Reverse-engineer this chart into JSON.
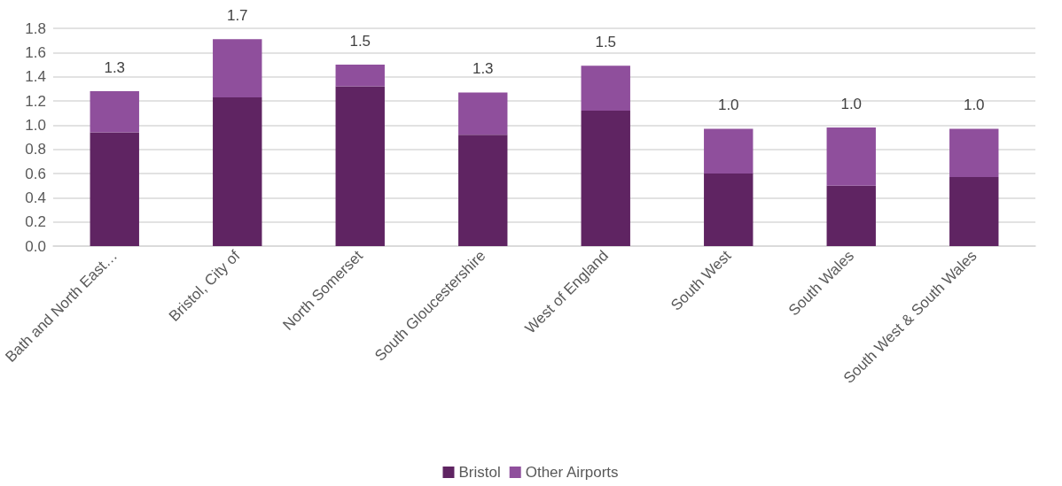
{
  "chart_data": {
    "type": "bar",
    "stacked": true,
    "categories": [
      "Bath and North East…",
      "Bristol, City of",
      "North Somerset",
      "South Gloucestershire",
      "West of England",
      "South West",
      "South Wales",
      "South West & South Wales"
    ],
    "series": [
      {
        "name": "Bristol",
        "color": "#5f2462",
        "values": [
          0.94,
          1.23,
          1.32,
          0.92,
          1.12,
          0.6,
          0.5,
          0.57
        ]
      },
      {
        "name": "Other Airports",
        "color": "#8f4f9c",
        "values": [
          0.34,
          0.48,
          0.18,
          0.35,
          0.37,
          0.37,
          0.48,
          0.4
        ]
      }
    ],
    "totals": [
      "1.3",
      "1.7",
      "1.5",
      "1.3",
      "1.5",
      "1.0",
      "1.0",
      "1.0"
    ],
    "ylim": [
      0,
      1.8
    ],
    "yticks": [
      {
        "value": 0,
        "label": "0.0"
      },
      0.2,
      0.4,
      0.6,
      0.8,
      {
        "value": 1,
        "label": "1.0"
      },
      1.2,
      1.4,
      1.6,
      1.8
    ],
    "grid": "y",
    "legend": "bottom"
  }
}
